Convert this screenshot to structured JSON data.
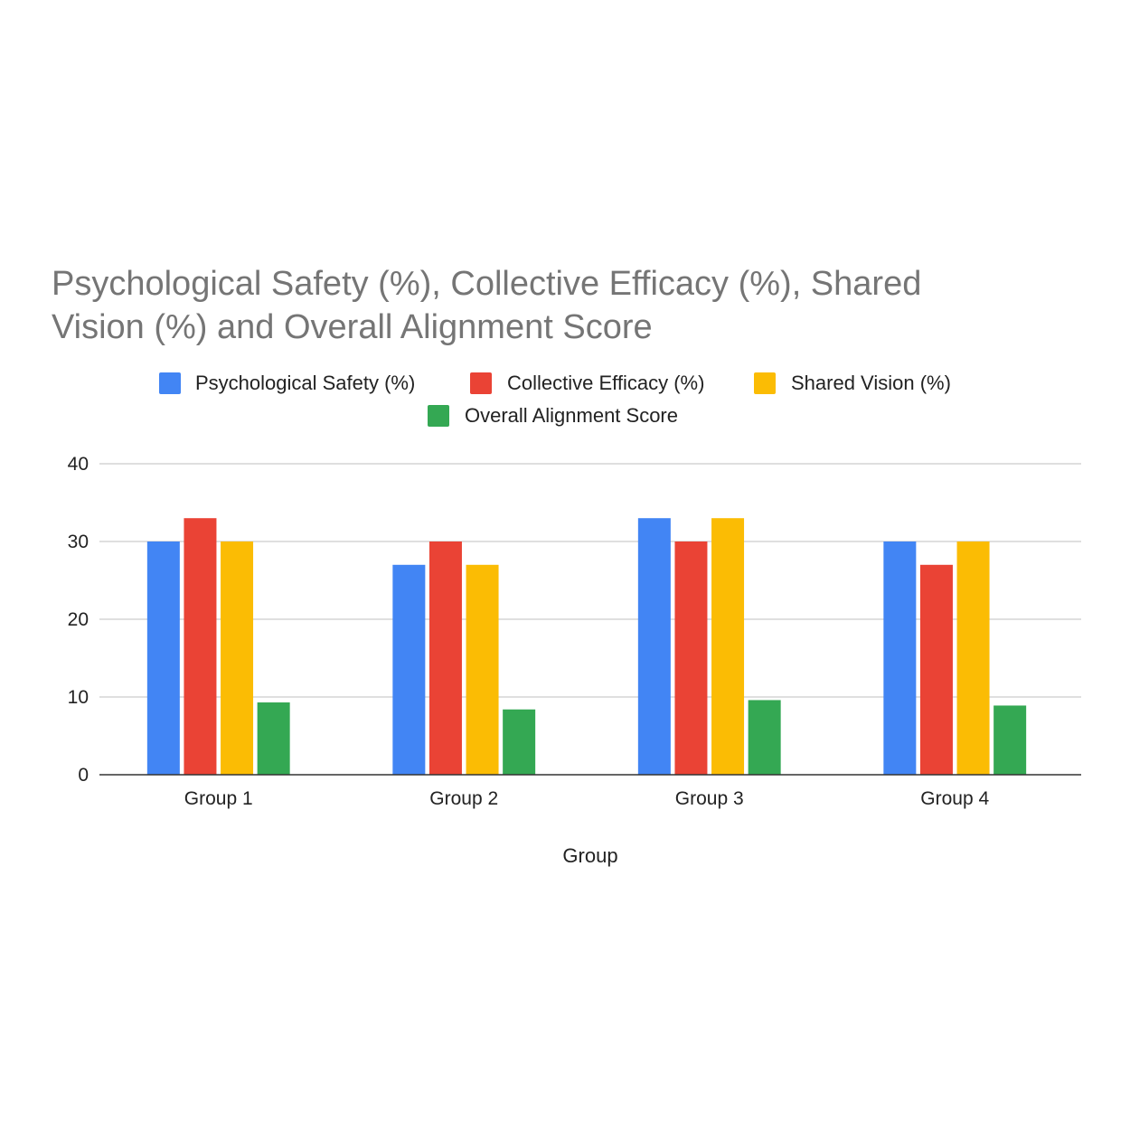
{
  "chart_data": {
    "type": "bar",
    "title": "Psychological Safety (%), Collective Efficacy (%), Shared Vision (%) and Overall Alignment Score",
    "title_lines": [
      "Psychological Safety (%), Collective Efficacy (%), Shared",
      "Vision (%) and Overall Alignment Score"
    ],
    "xlabel": "Group",
    "ylabel": "",
    "categories": [
      "Group 1",
      "Group 2",
      "Group 3",
      "Group 4"
    ],
    "series": [
      {
        "name": "Psychological Safety (%)",
        "color": "#4285F4",
        "values": [
          30,
          27,
          33,
          30
        ]
      },
      {
        "name": "Collective Efficacy (%)",
        "color": "#EA4335",
        "values": [
          33,
          30,
          30,
          27
        ]
      },
      {
        "name": "Shared Vision (%)",
        "color": "#FBBC04",
        "values": [
          30,
          27,
          33,
          30
        ]
      },
      {
        "name": "Overall Alignment Score",
        "color": "#34A853",
        "values": [
          9.3,
          8.4,
          9.6,
          8.9
        ]
      }
    ],
    "ylim": [
      0,
      40
    ],
    "yticks": [
      0,
      10,
      20,
      30,
      40
    ],
    "grid": true,
    "legend_position": "top"
  }
}
